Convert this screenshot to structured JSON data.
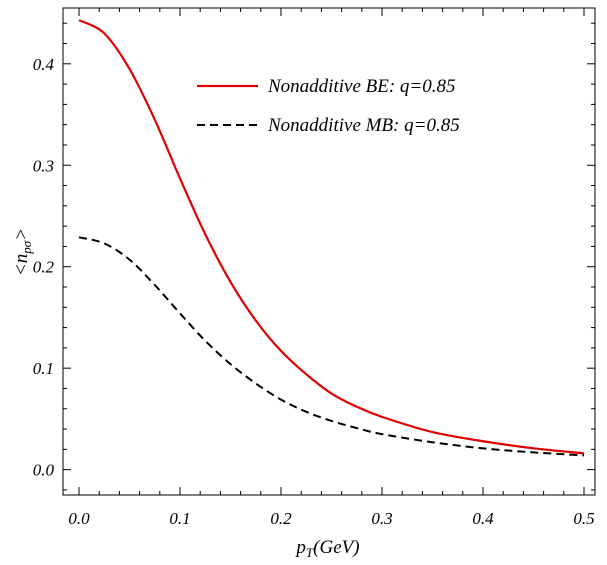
{
  "chart_data": {
    "type": "line",
    "xlabel": {
      "main": "p",
      "sub": "T",
      "rest": "(GeV)"
    },
    "ylabel": {
      "pre": "<n",
      "sub": "pσ",
      "post": ">"
    },
    "xlim": [
      0.0,
      0.5
    ],
    "ylim": [
      -0.025,
      0.455
    ],
    "xticks": [
      0.0,
      0.1,
      0.2,
      0.3,
      0.4,
      0.5
    ],
    "xtick_labels": [
      "0.0",
      "0.1",
      "0.2",
      "0.3",
      "0.4",
      "0.5"
    ],
    "yticks": [
      0.0,
      0.1,
      0.2,
      0.3,
      0.4
    ],
    "ytick_labels": [
      "0.0",
      "0.1",
      "0.2",
      "0.3",
      "0.4"
    ],
    "grid": false,
    "legend_position": "top-right",
    "series": [
      {
        "name": "Nonadditive BE: q=0.85",
        "color": "#e00000",
        "dash": "solid",
        "x": [
          0.0,
          0.025,
          0.05,
          0.075,
          0.1,
          0.125,
          0.15,
          0.175,
          0.2,
          0.225,
          0.25,
          0.275,
          0.3,
          0.35,
          0.4,
          0.45,
          0.5
        ],
        "y": [
          0.443,
          0.43,
          0.395,
          0.345,
          0.287,
          0.232,
          0.185,
          0.147,
          0.117,
          0.094,
          0.075,
          0.062,
          0.052,
          0.037,
          0.028,
          0.021,
          0.016
        ]
      },
      {
        "name": "Nonadditive MB: q=0.85",
        "color": "#000000",
        "dash": "dashed",
        "x": [
          0.0,
          0.025,
          0.05,
          0.075,
          0.1,
          0.125,
          0.15,
          0.175,
          0.2,
          0.225,
          0.25,
          0.275,
          0.3,
          0.35,
          0.4,
          0.45,
          0.5
        ],
        "y": [
          0.229,
          0.223,
          0.207,
          0.182,
          0.154,
          0.127,
          0.104,
          0.085,
          0.069,
          0.057,
          0.048,
          0.041,
          0.035,
          0.027,
          0.021,
          0.017,
          0.014
        ]
      }
    ]
  }
}
